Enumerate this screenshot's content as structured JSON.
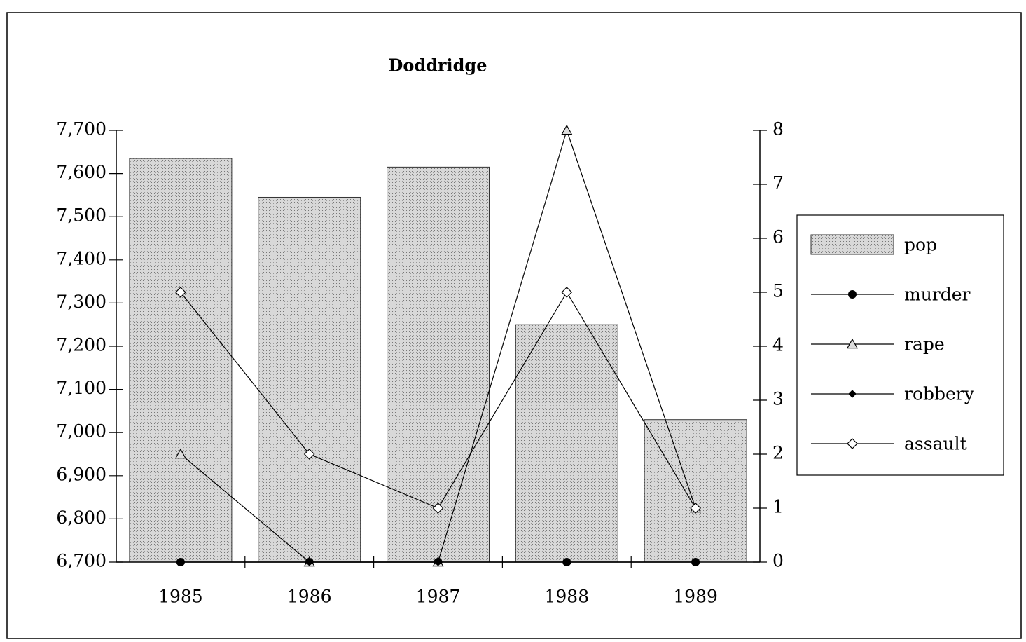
{
  "chart_data": {
    "type": "bar",
    "title": "Doddridge",
    "categories": [
      "1985",
      "1986",
      "1987",
      "1988",
      "1989"
    ],
    "series": [
      {
        "name": "pop",
        "type": "bar",
        "color": "#c4c4c4",
        "values": [
          7635,
          7545,
          7615,
          7250,
          7030
        ]
      },
      {
        "name": "murder",
        "type": "line",
        "axis": "y2",
        "color": "#000000",
        "marker": "circle",
        "values": [
          0,
          0,
          0,
          0,
          0
        ]
      },
      {
        "name": "rape",
        "type": "line",
        "axis": "y2",
        "color": "#000000",
        "marker": "triangle",
        "values": [
          2,
          0,
          0,
          8,
          1
        ]
      },
      {
        "name": "robbery",
        "type": "line",
        "axis": "y2",
        "color": "#000000",
        "marker": "diamond-filled",
        "values": [
          0,
          0,
          0,
          0,
          0
        ]
      },
      {
        "name": "assault",
        "type": "line",
        "axis": "y2",
        "color": "#000000",
        "marker": "diamond-open",
        "values": [
          5,
          2,
          1,
          5,
          1
        ]
      }
    ],
    "ylim": [
      6700,
      7700
    ],
    "yticks": [
      {
        "value": 6700,
        "label": "6,700"
      },
      {
        "value": 6800,
        "label": "6,800"
      },
      {
        "value": 6900,
        "label": "6,900"
      },
      {
        "value": 7000,
        "label": "7,000"
      },
      {
        "value": 7100,
        "label": "7,100"
      },
      {
        "value": 7200,
        "label": "7,200"
      },
      {
        "value": 7300,
        "label": "7,300"
      },
      {
        "value": 7400,
        "label": "7,400"
      },
      {
        "value": 7500,
        "label": "7,500"
      },
      {
        "value": 7600,
        "label": "7,600"
      },
      {
        "value": 7700,
        "label": "7,700"
      }
    ],
    "y2lim": [
      0,
      8
    ],
    "y2ticks": [
      0,
      1,
      2,
      3,
      4,
      5,
      6,
      7,
      8
    ],
    "legend": "right"
  }
}
